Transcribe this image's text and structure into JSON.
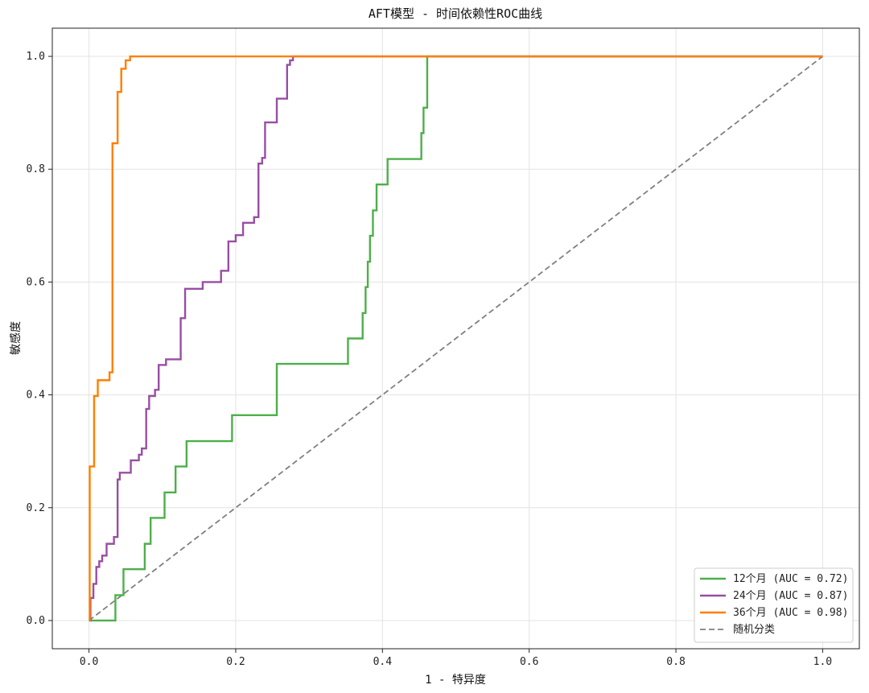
{
  "chart_data": {
    "type": "line",
    "title": "AFT模型 - 时间依赖性ROC曲线",
    "xlabel": "1 - 特异度",
    "ylabel": "敏感度",
    "xlim": [
      -0.05,
      1.05
    ],
    "ylim": [
      -0.05,
      1.05
    ],
    "xticks": [
      "0.0",
      "0.2",
      "0.4",
      "0.6",
      "0.8",
      "1.0"
    ],
    "yticks": [
      "0.0",
      "0.2",
      "0.4",
      "0.6",
      "0.8",
      "1.0"
    ],
    "grid": true,
    "legend_position": "bottom-right",
    "series": [
      {
        "name": "12个月 (AUC = 0.72)",
        "color": "#4daf4a",
        "style": "solid",
        "points": [
          [
            0,
            0
          ],
          [
            0.036,
            0
          ],
          [
            0.036,
            0.045
          ],
          [
            0.047,
            0.045
          ],
          [
            0.047,
            0.091
          ],
          [
            0.076,
            0.091
          ],
          [
            0.076,
            0.136
          ],
          [
            0.084,
            0.136
          ],
          [
            0.084,
            0.182
          ],
          [
            0.103,
            0.182
          ],
          [
            0.103,
            0.227
          ],
          [
            0.118,
            0.227
          ],
          [
            0.118,
            0.273
          ],
          [
            0.133,
            0.273
          ],
          [
            0.133,
            0.318
          ],
          [
            0.195,
            0.318
          ],
          [
            0.195,
            0.364
          ],
          [
            0.256,
            0.364
          ],
          [
            0.256,
            0.455
          ],
          [
            0.353,
            0.455
          ],
          [
            0.353,
            0.5
          ],
          [
            0.373,
            0.5
          ],
          [
            0.373,
            0.545
          ],
          [
            0.377,
            0.545
          ],
          [
            0.377,
            0.591
          ],
          [
            0.38,
            0.591
          ],
          [
            0.38,
            0.636
          ],
          [
            0.383,
            0.636
          ],
          [
            0.383,
            0.682
          ],
          [
            0.387,
            0.682
          ],
          [
            0.387,
            0.727
          ],
          [
            0.392,
            0.727
          ],
          [
            0.392,
            0.773
          ],
          [
            0.407,
            0.773
          ],
          [
            0.407,
            0.818
          ],
          [
            0.453,
            0.818
          ],
          [
            0.453,
            0.864
          ],
          [
            0.456,
            0.864
          ],
          [
            0.456,
            0.909
          ],
          [
            0.461,
            0.909
          ],
          [
            0.461,
            1.0
          ],
          [
            1.0,
            1.0
          ]
        ]
      },
      {
        "name": "24个月 (AUC = 0.87)",
        "color": "#984ea3",
        "style": "solid",
        "points": [
          [
            0,
            0
          ],
          [
            0.002,
            0
          ],
          [
            0.002,
            0.04
          ],
          [
            0.006,
            0.04
          ],
          [
            0.006,
            0.065
          ],
          [
            0.01,
            0.065
          ],
          [
            0.01,
            0.095
          ],
          [
            0.014,
            0.095
          ],
          [
            0.014,
            0.105
          ],
          [
            0.018,
            0.105
          ],
          [
            0.018,
            0.115
          ],
          [
            0.024,
            0.115
          ],
          [
            0.024,
            0.136
          ],
          [
            0.034,
            0.136
          ],
          [
            0.034,
            0.148
          ],
          [
            0.039,
            0.148
          ],
          [
            0.039,
            0.25
          ],
          [
            0.042,
            0.25
          ],
          [
            0.042,
            0.262
          ],
          [
            0.057,
            0.262
          ],
          [
            0.057,
            0.284
          ],
          [
            0.068,
            0.284
          ],
          [
            0.068,
            0.294
          ],
          [
            0.072,
            0.294
          ],
          [
            0.072,
            0.305
          ],
          [
            0.078,
            0.305
          ],
          [
            0.078,
            0.375
          ],
          [
            0.082,
            0.375
          ],
          [
            0.082,
            0.398
          ],
          [
            0.09,
            0.398
          ],
          [
            0.09,
            0.409
          ],
          [
            0.095,
            0.409
          ],
          [
            0.095,
            0.453
          ],
          [
            0.105,
            0.453
          ],
          [
            0.105,
            0.463
          ],
          [
            0.125,
            0.463
          ],
          [
            0.125,
            0.536
          ],
          [
            0.131,
            0.536
          ],
          [
            0.131,
            0.588
          ],
          [
            0.155,
            0.588
          ],
          [
            0.155,
            0.6
          ],
          [
            0.18,
            0.6
          ],
          [
            0.18,
            0.62
          ],
          [
            0.19,
            0.62
          ],
          [
            0.19,
            0.672
          ],
          [
            0.2,
            0.672
          ],
          [
            0.2,
            0.683
          ],
          [
            0.21,
            0.683
          ],
          [
            0.21,
            0.705
          ],
          [
            0.225,
            0.705
          ],
          [
            0.225,
            0.715
          ],
          [
            0.231,
            0.715
          ],
          [
            0.231,
            0.81
          ],
          [
            0.236,
            0.81
          ],
          [
            0.236,
            0.82
          ],
          [
            0.24,
            0.82
          ],
          [
            0.24,
            0.883
          ],
          [
            0.256,
            0.883
          ],
          [
            0.256,
            0.925
          ],
          [
            0.27,
            0.925
          ],
          [
            0.27,
            0.985
          ],
          [
            0.274,
            0.985
          ],
          [
            0.274,
            0.993
          ],
          [
            0.278,
            0.993
          ],
          [
            0.278,
            1.0
          ],
          [
            1.0,
            1.0
          ]
        ]
      },
      {
        "name": "36个月 (AUC = 0.98)",
        "color": "#ff7f00",
        "style": "solid",
        "points": [
          [
            0,
            0
          ],
          [
            0.001,
            0
          ],
          [
            0.001,
            0.273
          ],
          [
            0.007,
            0.273
          ],
          [
            0.007,
            0.398
          ],
          [
            0.012,
            0.398
          ],
          [
            0.012,
            0.426
          ],
          [
            0.028,
            0.426
          ],
          [
            0.028,
            0.44
          ],
          [
            0.032,
            0.44
          ],
          [
            0.032,
            0.846
          ],
          [
            0.039,
            0.846
          ],
          [
            0.039,
            0.937
          ],
          [
            0.044,
            0.937
          ],
          [
            0.044,
            0.978
          ],
          [
            0.05,
            0.978
          ],
          [
            0.05,
            0.993
          ],
          [
            0.056,
            0.993
          ],
          [
            0.056,
            1.0
          ],
          [
            1.0,
            1.0
          ]
        ]
      },
      {
        "name": "随机分类",
        "color": "#808080",
        "style": "dashed",
        "points": [
          [
            0,
            0
          ],
          [
            1,
            1
          ]
        ]
      }
    ]
  }
}
